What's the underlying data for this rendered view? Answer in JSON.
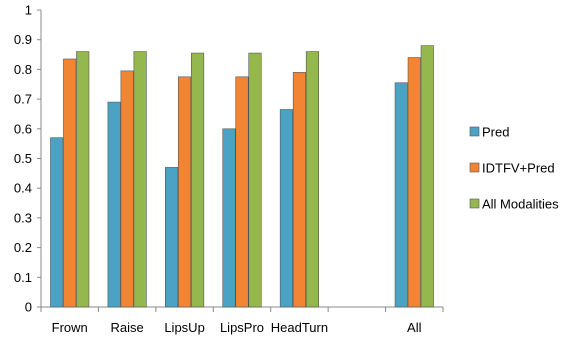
{
  "chart_data": {
    "type": "bar",
    "categories": [
      "Frown",
      "Raise",
      "LipsUp",
      "LipsPro",
      "HeadTurn",
      "",
      "All"
    ],
    "series": [
      {
        "name": "Pred",
        "values": [
          0.57,
          0.69,
          0.47,
          0.6,
          0.665,
          null,
          0.755
        ],
        "color": "#4aa3c4"
      },
      {
        "name": "IDTFV+Pred",
        "values": [
          0.835,
          0.795,
          0.775,
          0.775,
          0.79,
          null,
          0.84
        ],
        "color": "#f28533"
      },
      {
        "name": "All Modalities",
        "values": [
          0.86,
          0.86,
          0.855,
          0.855,
          0.86,
          null,
          0.88
        ],
        "color": "#94b84d"
      }
    ],
    "yticks": [
      "0",
      "0.1",
      "0.2",
      "0.3",
      "0.4",
      "0.5",
      "0.6",
      "0.7",
      "0.8",
      "0.9",
      "1"
    ],
    "ylim": [
      0,
      1
    ],
    "grid": false,
    "legend_position": "right",
    "title": "",
    "xlabel": "",
    "ylabel": ""
  }
}
